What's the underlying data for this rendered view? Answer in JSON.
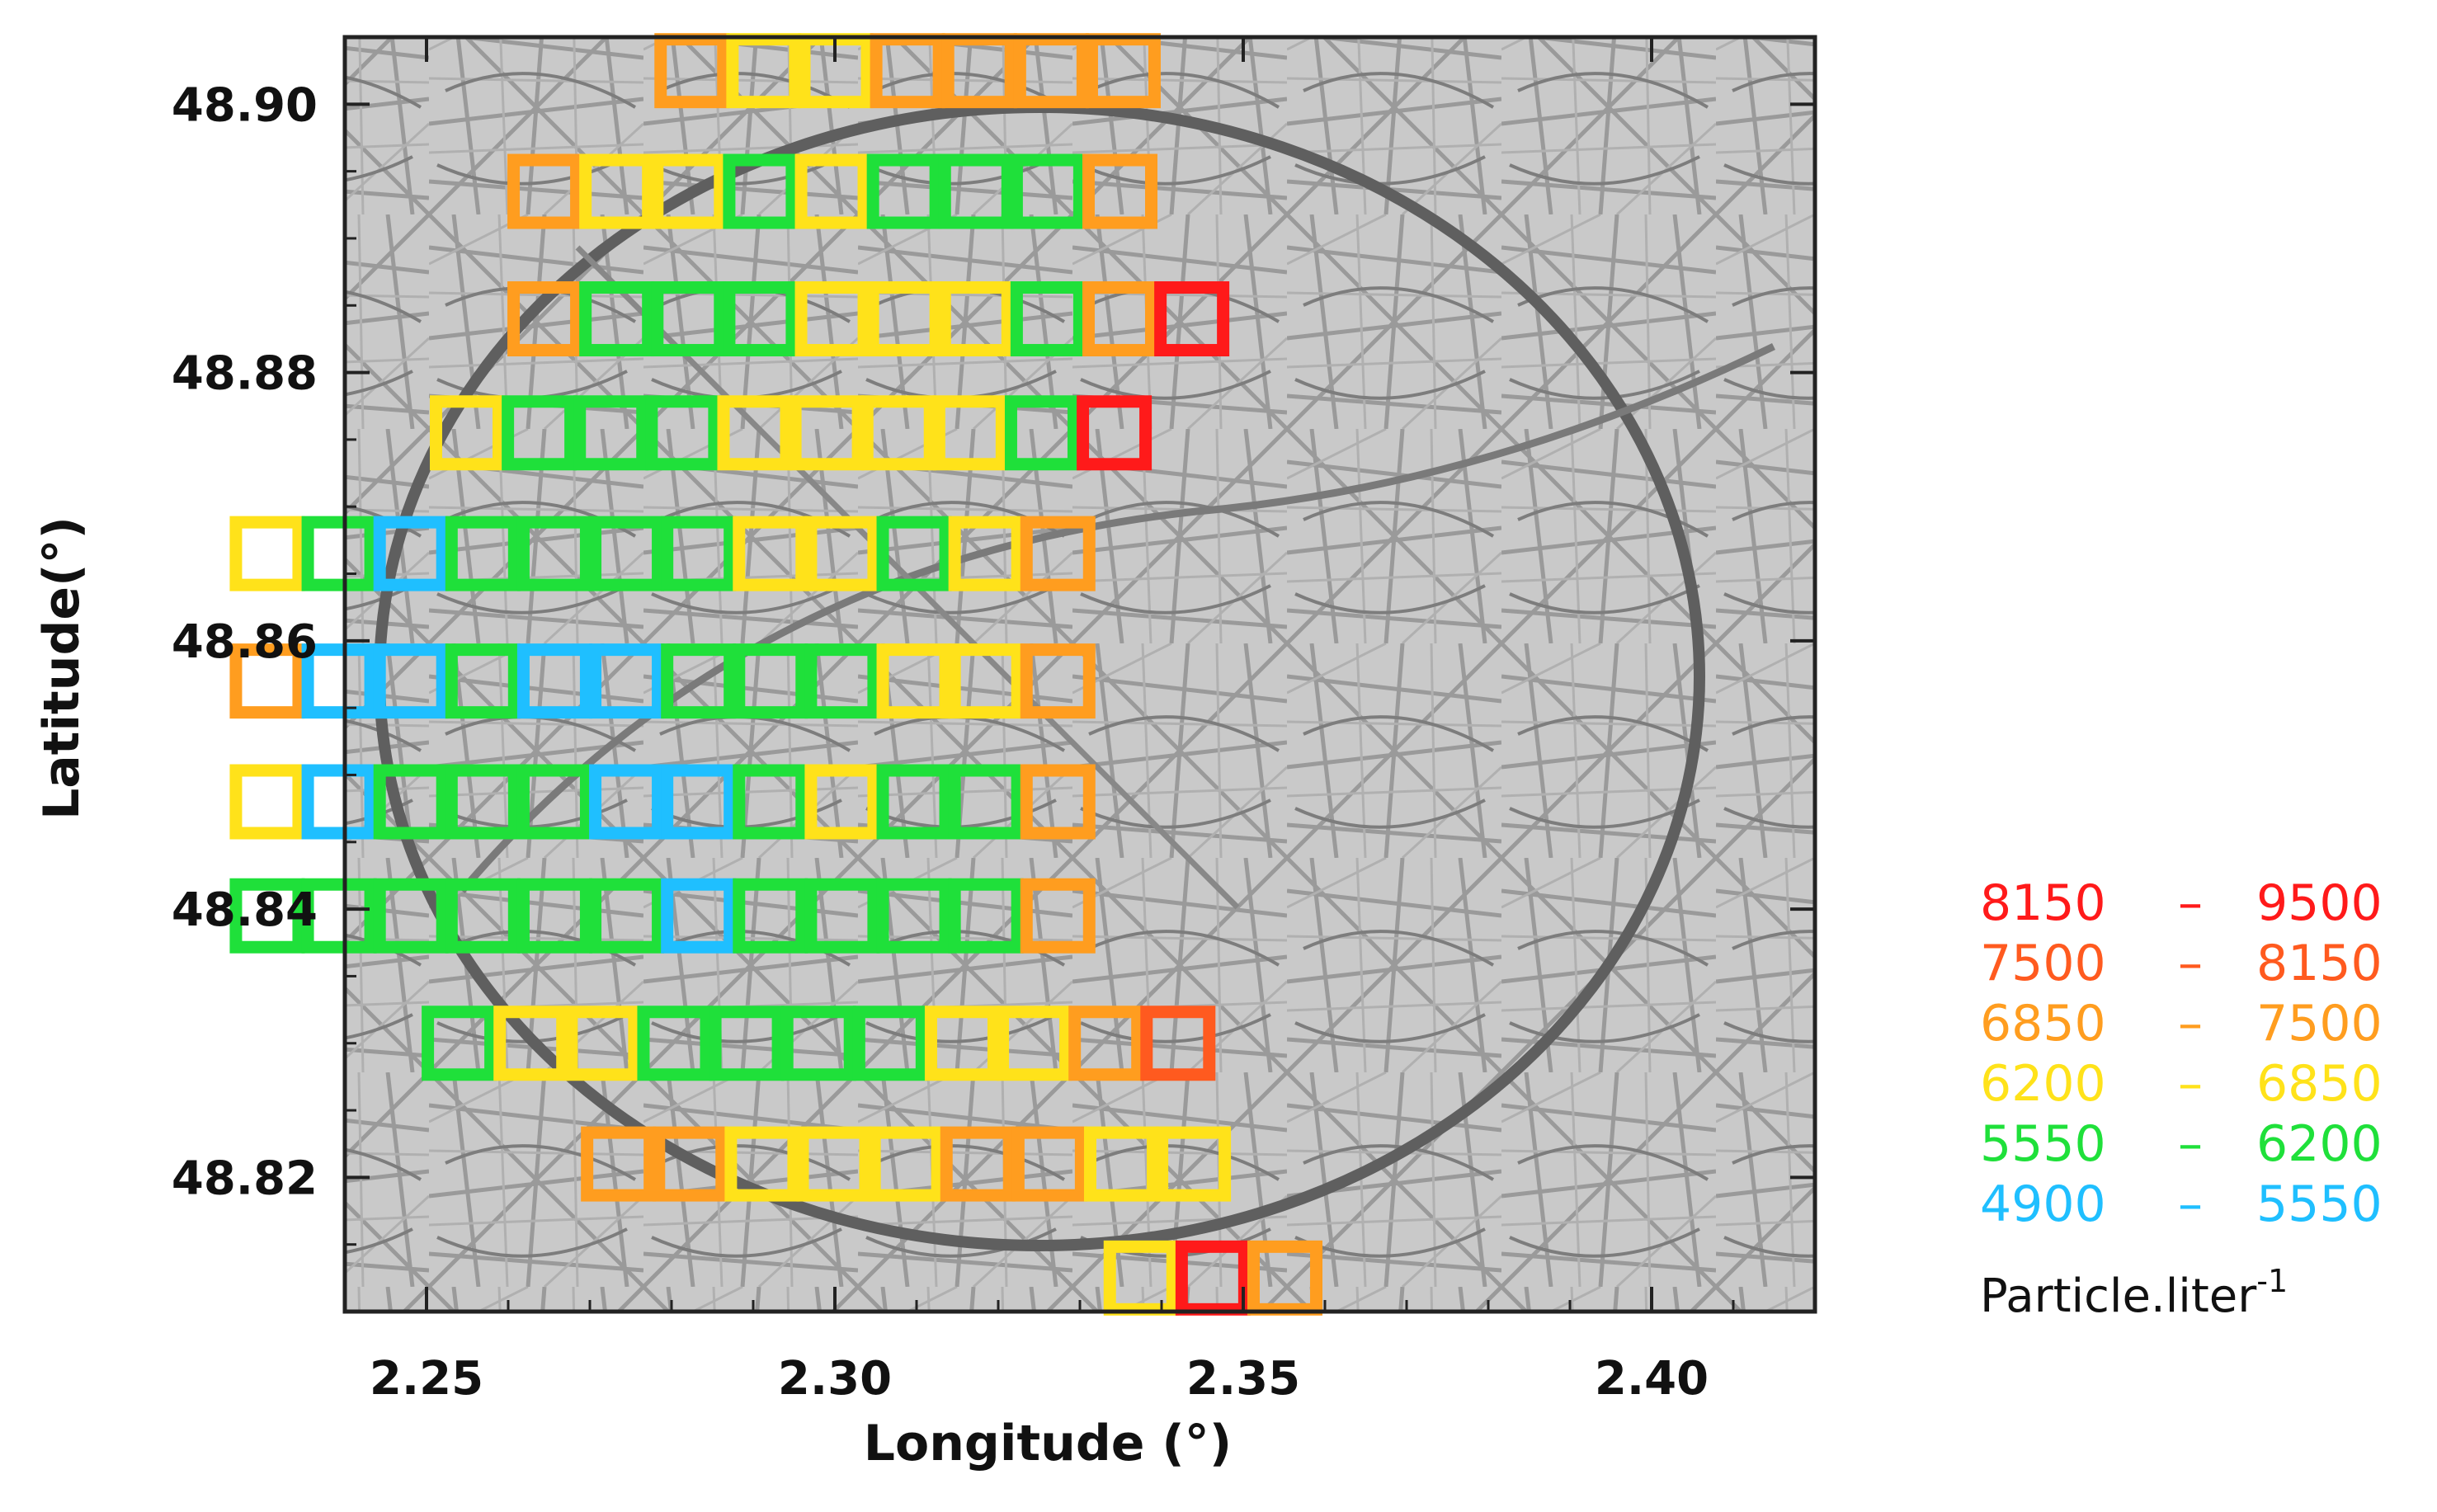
{
  "chart_data": {
    "type": "heatmap",
    "title": "",
    "xlabel": "Longitude (°)",
    "ylabel": "Latitude(°)",
    "xlim": [
      2.24,
      2.42
    ],
    "ylim": [
      48.81,
      48.905
    ],
    "x_ticks": [
      "2.25",
      "2.30",
      "2.35",
      "2.40"
    ],
    "y_ticks": [
      "48.82",
      "48.84",
      "48.86",
      "48.88",
      "48.90"
    ],
    "grid": false,
    "background": "grayscale street map",
    "legend": {
      "placement": "right-bottom",
      "unit": "Particle.liter",
      "unit_exponent": "-1",
      "bins": [
        {
          "key": "c6",
          "low": "8150",
          "dash": "–",
          "high": "9500",
          "color": "#ff1a1a"
        },
        {
          "key": "c5",
          "low": "7500",
          "dash": "–",
          "high": "8150",
          "color": "#ff5a1f"
        },
        {
          "key": "c4",
          "low": "6850",
          "dash": "–",
          "high": "7500",
          "color": "#ff9d1f"
        },
        {
          "key": "c3",
          "low": "6200",
          "dash": "–",
          "high": "6850",
          "color": "#ffe21a"
        },
        {
          "key": "c2",
          "low": "5550",
          "dash": "–",
          "high": "6200",
          "color": "#1fe03a"
        },
        {
          "key": "c1",
          "low": "4900",
          "dash": "–",
          "high": "5550",
          "color": "#1fbfff"
        }
      ]
    },
    "rows": [
      {
        "lat": 48.9025,
        "start": 2.2825,
        "cells": [
          "c4",
          "c3",
          "c3",
          "c4",
          "c4",
          "c4",
          "c4"
        ]
      },
      {
        "lat": 48.8935,
        "start": 2.2645,
        "cells": [
          "c4",
          "c3",
          "c3",
          "c2",
          "c3",
          "c2",
          "c2",
          "c2",
          "c4"
        ]
      },
      {
        "lat": 48.884,
        "start": 2.2645,
        "cells": [
          "c4",
          "c2",
          "c2",
          "c2",
          "c3",
          "c3",
          "c3",
          "c2",
          "c4",
          "c6"
        ]
      },
      {
        "lat": 48.8755,
        "start": 2.255,
        "cells": [
          "c3",
          "c2",
          "c2",
          "c2",
          "c3",
          "c3",
          "c3",
          "c3",
          "c2",
          "c6"
        ]
      },
      {
        "lat": 48.8665,
        "start": 2.2305,
        "cells": [
          "c3",
          "c2",
          "c1",
          "c2",
          "c2",
          "c2",
          "c2",
          "c3",
          "c3",
          "c2",
          "c3",
          "c4"
        ]
      },
      {
        "lat": 48.857,
        "start": 2.2305,
        "cells": [
          "c4",
          "c1",
          "c1",
          "c2",
          "c1",
          "c1",
          "c2",
          "c2",
          "c2",
          "c3",
          "c3",
          "c4"
        ]
      },
      {
        "lat": 48.848,
        "start": 2.2305,
        "cells": [
          "c3",
          "c1",
          "c2",
          "c2",
          "c2",
          "c1",
          "c1",
          "c2",
          "c3",
          "c2",
          "c2",
          "c4"
        ]
      },
      {
        "lat": 48.8395,
        "start": 2.2305,
        "cells": [
          "c2",
          "c2",
          "c2",
          "c2",
          "c2",
          "c2",
          "c1",
          "c2",
          "c2",
          "c2",
          "c2",
          "c4"
        ]
      },
      {
        "lat": 48.83,
        "start": 2.254,
        "cells": [
          "c2",
          "c3",
          "c3",
          "c2",
          "c2",
          "c2",
          "c2",
          "c3",
          "c3",
          "c4",
          "c5"
        ]
      },
      {
        "lat": 48.821,
        "start": 2.2735,
        "cells": [
          "c4",
          "c4",
          "c3",
          "c3",
          "c3",
          "c4",
          "c4",
          "c3",
          "c3"
        ]
      },
      {
        "lat": 48.8125,
        "start": 2.3375,
        "cells": [
          "c3",
          "c6",
          "c4"
        ]
      }
    ]
  }
}
